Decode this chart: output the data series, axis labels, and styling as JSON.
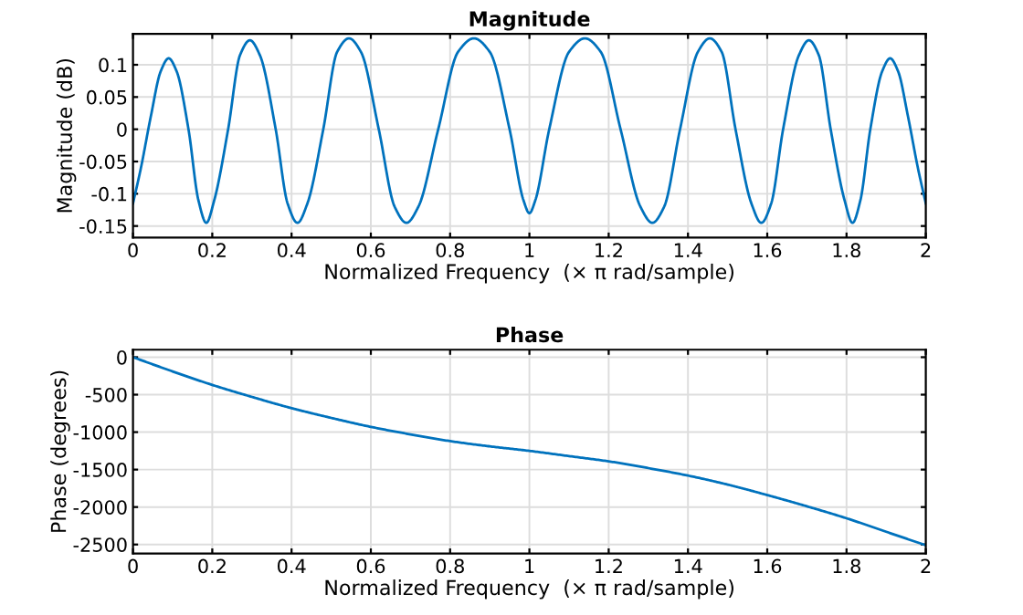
{
  "chart_data": [
    {
      "type": "line",
      "title": "Magnitude",
      "xlabel": "Normalized Frequency  (× π rad/sample)",
      "ylabel": "Magnitude (dB)",
      "x": [
        0,
        0.02,
        0.045,
        0.07,
        0.09,
        0.11,
        0.14,
        0.165,
        0.185,
        0.205,
        0.24,
        0.27,
        0.295,
        0.32,
        0.36,
        0.39,
        0.415,
        0.44,
        0.48,
        0.515,
        0.545,
        0.575,
        0.62,
        0.66,
        0.69,
        0.72,
        0.77,
        0.82,
        0.86,
        0.9,
        0.95,
        0.985,
        1.0,
        1.015,
        1.05,
        1.1,
        1.14,
        1.18,
        1.23,
        1.28,
        1.31,
        1.34,
        1.38,
        1.425,
        1.455,
        1.485,
        1.52,
        1.56,
        1.585,
        1.61,
        1.64,
        1.68,
        1.705,
        1.73,
        1.76,
        1.795,
        1.815,
        1.835,
        1.86,
        1.89,
        1.91,
        1.93,
        1.955,
        1.98,
        2.0
      ],
      "series": [
        {
          "color": "#0072bd",
          "values": [
            -0.115,
            -0.06,
            0.02,
            0.09,
            0.11,
            0.09,
            0.0,
            -0.11,
            -0.145,
            -0.11,
            0.0,
            0.115,
            0.138,
            0.115,
            0.0,
            -0.115,
            -0.145,
            -0.115,
            0.0,
            0.12,
            0.141,
            0.12,
            0.0,
            -0.12,
            -0.145,
            -0.12,
            0.0,
            0.12,
            0.141,
            0.12,
            0.0,
            -0.11,
            -0.13,
            -0.11,
            0.0,
            0.12,
            0.141,
            0.12,
            0.0,
            -0.12,
            -0.145,
            -0.12,
            0.0,
            0.12,
            0.141,
            0.12,
            0.0,
            -0.115,
            -0.145,
            -0.115,
            0.0,
            0.115,
            0.138,
            0.115,
            0.0,
            -0.11,
            -0.145,
            -0.11,
            0.0,
            0.09,
            0.11,
            0.09,
            0.02,
            -0.06,
            -0.115
          ]
        }
      ],
      "xlim": [
        0,
        2
      ],
      "xticks": [
        0,
        0.2,
        0.4,
        0.6,
        0.8,
        1,
        1.2,
        1.4,
        1.6,
        1.8,
        2
      ],
      "ylim": [
        -0.168,
        0.148
      ],
      "yticks": [
        -0.15,
        -0.1,
        -0.05,
        0,
        0.05,
        0.1
      ],
      "grid": true,
      "marker": "none",
      "line_style": "solid"
    },
    {
      "type": "line",
      "title": "Phase",
      "xlabel": "Normalized Frequency  (× π rad/sample)",
      "ylabel": "Phase (degrees)",
      "x": [
        0,
        0.1,
        0.2,
        0.3,
        0.4,
        0.5,
        0.6,
        0.7,
        0.8,
        0.9,
        1.0,
        1.1,
        1.2,
        1.3,
        1.4,
        1.5,
        1.6,
        1.7,
        1.8,
        1.9,
        2.0
      ],
      "series": [
        {
          "color": "#0072bd",
          "values": [
            0,
            -190,
            -370,
            -530,
            -680,
            -810,
            -930,
            -1030,
            -1120,
            -1190,
            -1250,
            -1320,
            -1390,
            -1480,
            -1580,
            -1700,
            -1840,
            -1990,
            -2150,
            -2330,
            -2510
          ]
        }
      ],
      "xlim": [
        0,
        2
      ],
      "xticks": [
        0,
        0.2,
        0.4,
        0.6,
        0.8,
        1,
        1.2,
        1.4,
        1.6,
        1.8,
        2
      ],
      "ylim": [
        -2620,
        100
      ],
      "yticks": [
        -2500,
        -2000,
        -1500,
        -1000,
        -500,
        0
      ],
      "grid": true,
      "marker": "none",
      "line_style": "solid"
    }
  ]
}
